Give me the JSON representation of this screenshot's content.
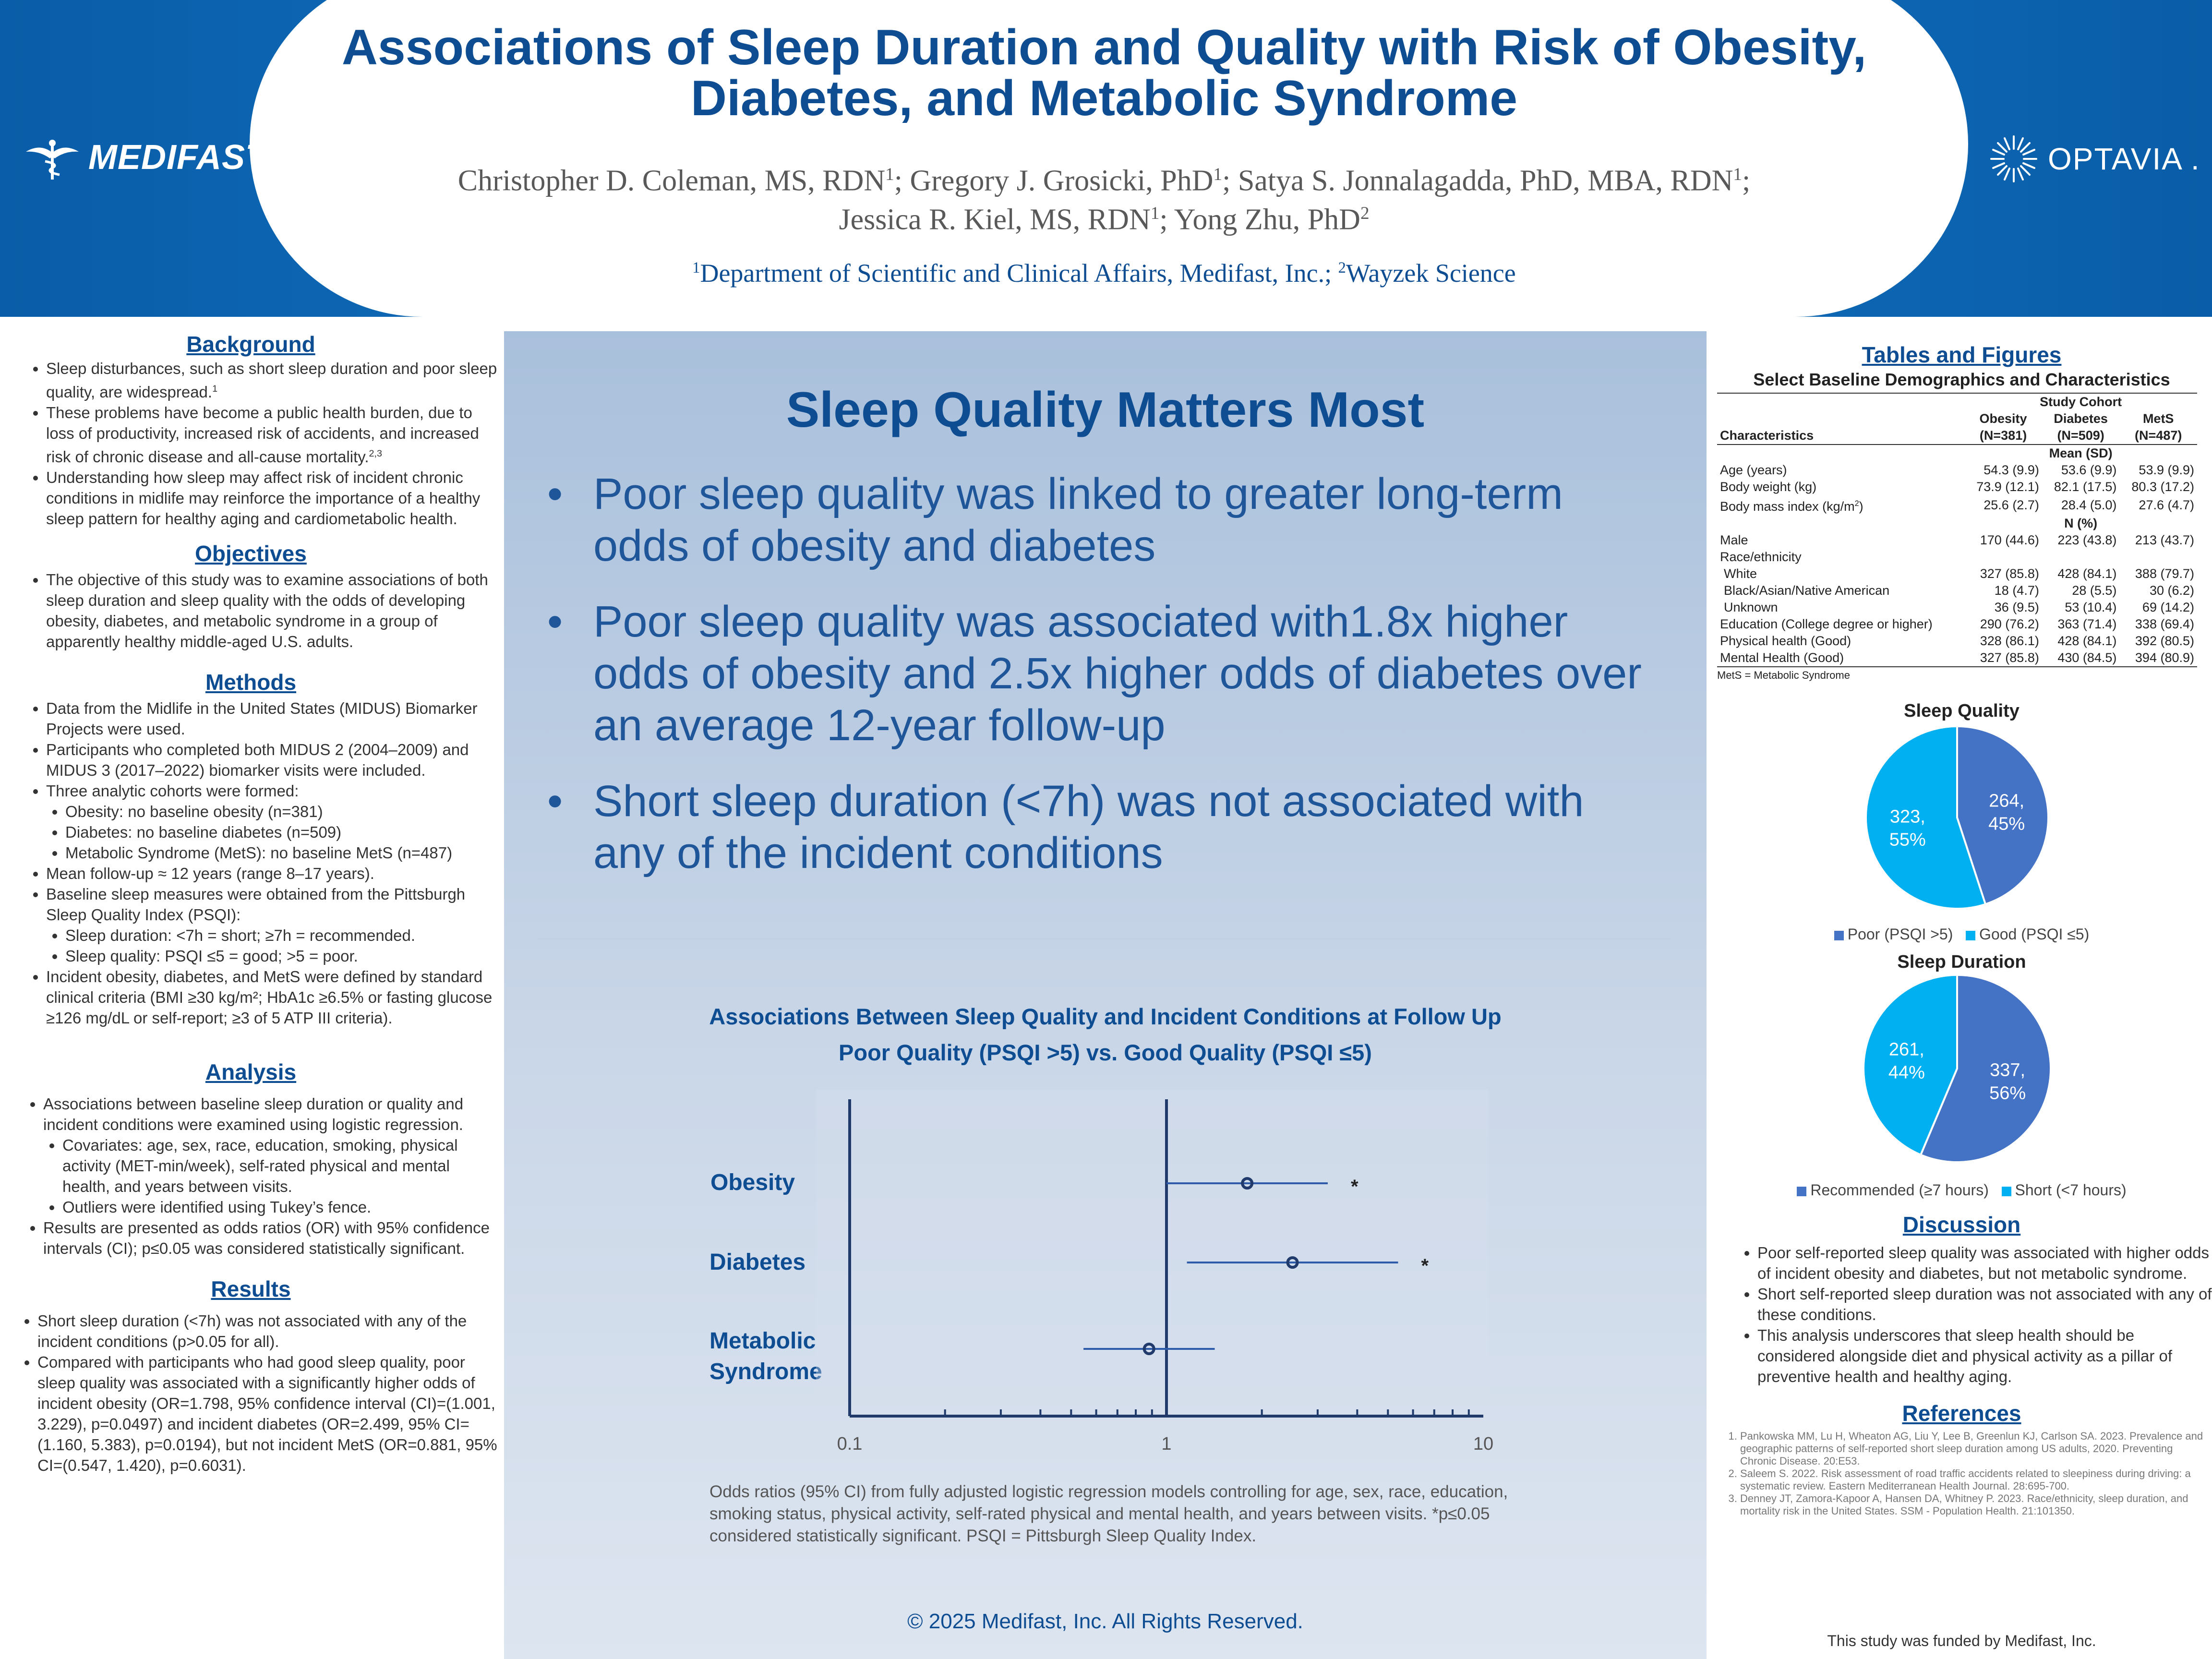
{
  "header": {
    "title_line1": "Associations of Sleep Duration and Quality with Risk of Obesity,",
    "title_line2": "Diabetes, and Metabolic Syndrome",
    "authors_line1": [
      {
        "name": "Christopher D. Coleman, MS, RDN",
        "sup": "1",
        "sep": "; "
      },
      {
        "name": "Gregory J. Grosicki, PhD",
        "sup": "1",
        "sep": "; "
      },
      {
        "name": "Satya S. Jonnalagadda, PhD, MBA, RDN",
        "sup": "1",
        "sep": ";"
      }
    ],
    "authors_line2": [
      {
        "name": "Jessica R. Kiel, MS, RDN",
        "sup": "1",
        "sep": "; "
      },
      {
        "name": "Yong Zhu, PhD",
        "sup": "2",
        "sep": ""
      }
    ],
    "affil_sup1": "1",
    "affil_text1": "Department of Scientific and Clinical Affairs, Medifast, Inc.; ",
    "affil_sup2": "2",
    "affil_text2": "Wayzek Science",
    "logo_left": "MEDIFAST",
    "logo_left_mark": ".",
    "logo_right": "OPTAVIA",
    "logo_right_mark": "."
  },
  "background": {
    "heading": "Background",
    "items": [
      {
        "text": "Sleep disturbances, such as short sleep duration and poor sleep quality, are widespread.",
        "sup": "1"
      },
      {
        "text": "These problems have become a public health burden, due to loss of productivity, increased risk of accidents, and increased risk of chronic disease and all-cause mortality.",
        "sup": "2,3"
      },
      {
        "text": "Understanding how sleep may affect risk of incident chronic conditions in midlife may reinforce the importance of a healthy sleep pattern for healthy aging and cardiometabolic health.",
        "sup": ""
      }
    ]
  },
  "objectives": {
    "heading": "Objectives",
    "items": [
      "The objective of this study was to examine associations of both sleep duration and sleep quality with the odds of developing obesity, diabetes, and metabolic syndrome in a group of apparently healthy middle-aged U.S. adults."
    ]
  },
  "methods": {
    "heading": "Methods",
    "item1": "Data from the Midlife in the United States (MIDUS) Biomarker Projects were used.",
    "item2": "Participants who completed both MIDUS 2 (2004–2009) and MIDUS 3 (2017–2022) biomarker visits were included.",
    "item3": "Three analytic cohorts were formed:",
    "item3_sub": [
      "Obesity: no baseline obesity (n=381)",
      "Diabetes: no baseline diabetes (n=509)",
      "Metabolic Syndrome (MetS): no baseline MetS (n=487)"
    ],
    "item4": "Mean follow-up ≈ 12 years (range 8–17 years).",
    "item5": "Baseline sleep measures were obtained from the Pittsburgh Sleep Quality Index (PSQI):",
    "item5_sub": [
      "Sleep duration: <7h = short; ≥7h = recommended.",
      "Sleep quality: PSQI ≤5 = good; >5 = poor."
    ],
    "item6": "Incident obesity, diabetes, and MetS were defined by standard clinical criteria (BMI ≥30 kg/m²; HbA1c ≥6.5% or fasting glucose ≥126 mg/dL or self-report; ≥3 of 5 ATP III criteria)."
  },
  "analysis": {
    "heading": "Analysis",
    "item1": "Associations between baseline sleep duration or quality and incident conditions were examined using logistic regression.",
    "item1_sub": [
      "Covariates: age, sex, race, education, smoking, physical activity (MET-min/week), self-rated physical and mental health, and years between visits.",
      "Outliers were identified using Tukey’s fence."
    ],
    "item2": "Results are presented as odds ratios (OR) with 95% confidence intervals (CI); p≤0.05 was considered statistically significant."
  },
  "results": {
    "heading": "Results",
    "items": [
      "Short sleep duration (<7h) was not associated with any of the incident conditions (p>0.05 for all).",
      "Compared with participants who had good sleep quality, poor sleep quality was associated with a significantly higher odds of incident obesity (OR=1.798, 95% confidence interval (CI)=(1.001, 3.229), p=0.0497) and incident diabetes (OR=2.499, 95% CI=(1.160, 5.383), p=0.0194), but not incident MetS (OR=0.881, 95% CI=(0.547, 1.420), p=0.6031)."
    ]
  },
  "center": {
    "headline": "Sleep Quality Matters Most",
    "key_points": [
      "Poor sleep quality was linked to greater long-term odds of obesity and diabetes",
      "Poor sleep quality was associated with1.8x higher odds of obesity and 2.5x higher odds of diabetes over an average 12-year follow-up",
      "Short sleep duration (<7h) was not associated with any of the incident conditions"
    ],
    "copyright": "© 2025 Medifast, Inc. All Rights Reserved."
  },
  "forest_plot": {
    "title_line1": "Associations Between Sleep Quality and Incident Conditions at Follow Up",
    "title_line2": "Poor Quality (PSQI >5) vs. Good Quality (PSQI ≤5)",
    "caption": "Odds ratios (95% CI) from fully adjusted logistic regression models controlling for age, sex, race, education, smoking status, physical activity, self-rated physical and mental health, and years between visits. *p≤0.05 considered statistically significant. PSQI = Pittsburgh Sleep Quality Index.",
    "tick_labels": [
      "0.1",
      "1",
      "10"
    ],
    "sig_marker": "*",
    "labels": {
      "obesity": "Obesity",
      "diabetes": "Diabetes",
      "mets_line1": "Metabolic",
      "mets_line2": "Syndrome"
    }
  },
  "chart_data": [
    {
      "type": "scatter",
      "title": "Associations Between Sleep Quality and Incident Conditions at Follow Up",
      "subtitle": "Poor Quality (PSQI >5) vs. Good Quality (PSQI ≤5)",
      "xscale": "log",
      "xlim": [
        0.1,
        10
      ],
      "xticks": [
        0.1,
        1,
        10
      ],
      "reference_line": 1,
      "categories": [
        "Obesity",
        "Diabetes",
        "Metabolic Syndrome"
      ],
      "or": [
        1.798,
        2.499,
        0.881
      ],
      "ci_low": [
        1.001,
        1.16,
        0.547
      ],
      "ci_high": [
        3.229,
        5.383,
        1.42
      ],
      "significant": [
        true,
        true,
        false
      ]
    },
    {
      "type": "pie",
      "title": "Sleep Quality",
      "labels": [
        "Poor (PSQI >5)",
        "Good (PSQI ≤5)"
      ],
      "values": [
        264,
        323
      ],
      "percents": [
        "45%",
        "55%"
      ],
      "colors": [
        "#4472c4",
        "#00b0f0"
      ]
    },
    {
      "type": "pie",
      "title": "Sleep Duration",
      "labels": [
        "Recommended (≥7 hours)",
        "Short (<7 hours)"
      ],
      "values": [
        337,
        261
      ],
      "percents": [
        "56%",
        "44%"
      ],
      "colors": [
        "#4472c4",
        "#00b0f0"
      ]
    }
  ],
  "right": {
    "heading": "Tables and Figures",
    "table_title": "Select Baseline Demographics and Characteristics",
    "study_cohort": "Study Cohort",
    "col_char": "Characteristics",
    "cols": [
      {
        "name": "Obesity",
        "n": "(N=381)"
      },
      {
        "name": "Diabetes",
        "n": "(N=509)"
      },
      {
        "name": "MetS",
        "n": "(N=487)"
      }
    ],
    "mean_sd": "Mean (SD)",
    "n_pct": "N (%)",
    "rows_mean": [
      {
        "label": "Age (years)",
        "v": [
          "54.3 (9.9)",
          "53.6 (9.9)",
          "53.9 (9.9)"
        ]
      },
      {
        "label": "Body weight (kg)",
        "v": [
          "73.9 (12.1)",
          "82.1 (17.5)",
          "80.3 (17.2)"
        ]
      },
      {
        "label": "Body mass index (kg/m",
        "sup": "2",
        "label_end": ")",
        "v": [
          "25.6 (2.7)",
          "28.4 (5.0)",
          "27.6 (4.7)"
        ]
      }
    ],
    "rows_n": [
      {
        "label": "Male",
        "v": [
          "170 (44.6)",
          "223 (43.8)",
          "213 (43.7)"
        ]
      },
      {
        "label": "Race/ethnicity",
        "v": [
          "",
          "",
          ""
        ]
      },
      {
        "label": " White",
        "v": [
          "327 (85.8)",
          "428 (84.1)",
          "388 (79.7)"
        ]
      },
      {
        "label": " Black/Asian/Native American",
        "v": [
          "18 (4.7)",
          "28 (5.5)",
          "30 (6.2)"
        ]
      },
      {
        "label": " Unknown",
        "v": [
          "36 (9.5)",
          "53 (10.4)",
          "69 (14.2)"
        ]
      },
      {
        "label": "Education (College degree or higher)",
        "v": [
          "290 (76.2)",
          "363 (71.4)",
          "338 (69.4)"
        ]
      },
      {
        "label": "Physical health (Good)",
        "v": [
          "328 (86.1)",
          "428 (84.1)",
          "392 (80.5)"
        ]
      },
      {
        "label": "Mental Health (Good)",
        "v": [
          "327 (85.8)",
          "430 (84.5)",
          "394 (80.9)"
        ]
      }
    ],
    "table_note": "MetS = Metabolic Syndrome",
    "discussion_heading": "Discussion",
    "discussion": [
      "Poor self-reported sleep quality was associated with higher odds of incident obesity and diabetes, but not metabolic syndrome.",
      "Short self-reported sleep duration was not associated with any of these conditions.",
      "This analysis underscores that sleep health should be considered alongside diet and physical activity as a pillar of preventive health and healthy aging."
    ],
    "references_heading": "References",
    "references": [
      "Pankowska MM, Lu H, Wheaton AG, Liu Y, Lee B, Greenlun KJ, Carlson SA. 2023. Prevalence and geographic patterns of self-reported short sleep duration among US adults, 2020. Preventing Chronic Disease. 20:E53.",
      "Saleem S. 2022. Risk assessment of road traffic accidents related to sleepiness during driving: a systematic review. Eastern Mediterranean Health Journal. 28:695-700.",
      "Denney JT, Zamora-Kapoor A, Hansen DA, Whitney P. 2023. Race/ethnicity, sleep duration, and mortality risk in the United States. SSM - Population Health. 21:101350."
    ],
    "funded": "This study was funded by Medifast, Inc."
  }
}
